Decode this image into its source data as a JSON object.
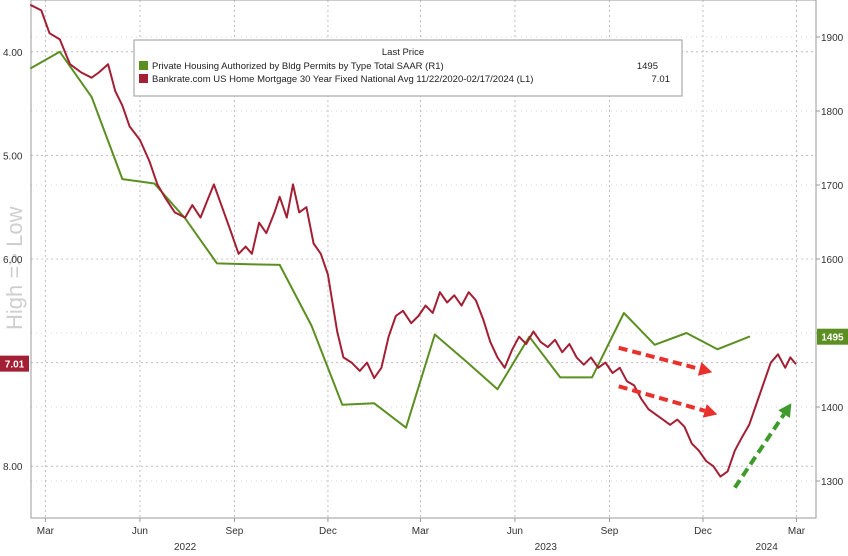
{
  "chart_data": {
    "type": "line",
    "legend": {
      "header": "Last Price",
      "placement": "top",
      "entries": [
        {
          "label": "Private Housing Authorized by Bldg Permits by Type Total SAAR  (R1)",
          "value": "1495",
          "color": "#5b8f22"
        },
        {
          "label": "Bankrate.com US Home Mortgage 30 Year Fixed National Avg 11/22/2020-02/17/2024  (L1)",
          "value": "7.01",
          "color": "#a31f34"
        }
      ]
    },
    "side_label": "High => Low",
    "left_axis": {
      "ticks": [
        "4.00",
        "5.00",
        "6.00",
        "7.00",
        "8.00"
      ],
      "values": [
        4,
        5,
        6,
        7,
        8
      ],
      "range": [
        3.5,
        8.5
      ],
      "inverted": true
    },
    "right_axis": {
      "ticks": [
        "1900",
        "1800",
        "1700",
        "1600",
        "1500",
        "1400",
        "1300"
      ],
      "values": [
        1900,
        1800,
        1700,
        1600,
        1500,
        1400,
        1300
      ],
      "range": [
        1250,
        1950
      ]
    },
    "x_axis": {
      "months": [
        "Mar",
        "Jun",
        "Sep",
        "Dec",
        "Mar",
        "Jun",
        "Sep",
        "Dec",
        "Mar"
      ],
      "month_dates": [
        "2022-03-01",
        "2022-06-01",
        "2022-09-01",
        "2022-12-01",
        "2023-03-01",
        "2023-06-01",
        "2023-09-01",
        "2023-12-01",
        "2024-03-01"
      ],
      "years": [
        "2022",
        "2023",
        "2024"
      ],
      "year_dates": [
        "2022-07-15",
        "2023-07-01",
        "2024-02-01"
      ],
      "range": [
        "2022-02-15",
        "2024-03-20"
      ]
    },
    "grid": true,
    "badges": [
      {
        "text": "7.01",
        "series": "mortgage",
        "value": 7.01,
        "color": "#a31f34"
      },
      {
        "text": "1495",
        "series": "permits",
        "value": 1495,
        "color": "#5b8f22"
      }
    ],
    "annotations": [
      {
        "type": "arrow",
        "color": "#e8302c",
        "dashed": true,
        "from": [
          "2023-09-10",
          1480
        ],
        "to": [
          "2023-12-10",
          1447
        ]
      },
      {
        "type": "arrow",
        "color": "#e8302c",
        "dashed": true,
        "from": [
          "2023-09-10",
          1428
        ],
        "to": [
          "2023-12-15",
          1390
        ]
      },
      {
        "type": "arrow",
        "color": "#3e9a2a",
        "dashed": true,
        "from": [
          "2024-01-01",
          1291
        ],
        "to": [
          "2024-02-25",
          1405
        ]
      }
    ],
    "series": [
      {
        "id": "permits",
        "axis": "right",
        "color": "#5b8f22",
        "points": [
          [
            "2022-02-15",
            1858
          ],
          [
            "2022-03-15",
            1880
          ],
          [
            "2022-04-15",
            1819
          ],
          [
            "2022-05-15",
            1708
          ],
          [
            "2022-06-15",
            1702
          ],
          [
            "2022-07-15",
            1655
          ],
          [
            "2022-08-15",
            1594
          ],
          [
            "2022-09-15",
            1593
          ],
          [
            "2022-10-15",
            1592
          ],
          [
            "2022-11-15",
            1510
          ],
          [
            "2022-12-15",
            1403
          ],
          [
            "2023-01-15",
            1405
          ],
          [
            "2023-02-15",
            1372
          ],
          [
            "2023-03-15",
            1498
          ],
          [
            "2023-04-15",
            1461
          ],
          [
            "2023-05-15",
            1424
          ],
          [
            "2023-06-15",
            1495
          ],
          [
            "2023-07-15",
            1440
          ],
          [
            "2023-08-15",
            1440
          ],
          [
            "2023-09-15",
            1527
          ],
          [
            "2023-10-15",
            1484
          ],
          [
            "2023-11-15",
            1500
          ],
          [
            "2023-12-15",
            1478
          ],
          [
            "2024-01-15",
            1495
          ]
        ]
      },
      {
        "id": "mortgage",
        "axis": "left",
        "color": "#a31f34",
        "points": [
          [
            "2022-02-15",
            3.55
          ],
          [
            "2022-02-25",
            3.6
          ],
          [
            "2022-03-05",
            3.82
          ],
          [
            "2022-03-15",
            3.88
          ],
          [
            "2022-03-25",
            4.12
          ],
          [
            "2022-04-05",
            4.2
          ],
          [
            "2022-04-15",
            4.25
          ],
          [
            "2022-04-22",
            4.2
          ],
          [
            "2022-05-01",
            4.12
          ],
          [
            "2022-05-08",
            4.38
          ],
          [
            "2022-05-15",
            4.52
          ],
          [
            "2022-05-22",
            4.72
          ],
          [
            "2022-06-01",
            4.85
          ],
          [
            "2022-06-10",
            5.05
          ],
          [
            "2022-06-18",
            5.28
          ],
          [
            "2022-06-25",
            5.4
          ],
          [
            "2022-07-05",
            5.55
          ],
          [
            "2022-07-15",
            5.6
          ],
          [
            "2022-07-22",
            5.48
          ],
          [
            "2022-07-30",
            5.6
          ],
          [
            "2022-08-05",
            5.45
          ],
          [
            "2022-08-12",
            5.28
          ],
          [
            "2022-08-20",
            5.5
          ],
          [
            "2022-08-28",
            5.72
          ],
          [
            "2022-09-05",
            5.95
          ],
          [
            "2022-09-12",
            5.88
          ],
          [
            "2022-09-18",
            5.95
          ],
          [
            "2022-09-25",
            5.65
          ],
          [
            "2022-10-02",
            5.75
          ],
          [
            "2022-10-10",
            5.55
          ],
          [
            "2022-10-15",
            5.4
          ],
          [
            "2022-10-22",
            5.6
          ],
          [
            "2022-10-28",
            5.28
          ],
          [
            "2022-11-03",
            5.55
          ],
          [
            "2022-11-10",
            5.5
          ],
          [
            "2022-11-17",
            5.85
          ],
          [
            "2022-11-24",
            5.95
          ],
          [
            "2022-12-01",
            6.15
          ],
          [
            "2022-12-05",
            6.4
          ],
          [
            "2022-12-10",
            6.7
          ],
          [
            "2022-12-16",
            6.95
          ],
          [
            "2022-12-24",
            7.0
          ],
          [
            "2023-01-01",
            7.08
          ],
          [
            "2023-01-08",
            7.0
          ],
          [
            "2023-01-15",
            7.15
          ],
          [
            "2023-01-22",
            7.05
          ],
          [
            "2023-01-29",
            6.75
          ],
          [
            "2023-02-05",
            6.55
          ],
          [
            "2023-02-12",
            6.5
          ],
          [
            "2023-02-20",
            6.62
          ],
          [
            "2023-02-27",
            6.55
          ],
          [
            "2023-03-06",
            6.45
          ],
          [
            "2023-03-13",
            6.52
          ],
          [
            "2023-03-20",
            6.32
          ],
          [
            "2023-03-27",
            6.42
          ],
          [
            "2023-04-03",
            6.35
          ],
          [
            "2023-04-10",
            6.45
          ],
          [
            "2023-04-17",
            6.32
          ],
          [
            "2023-04-24",
            6.4
          ],
          [
            "2023-05-01",
            6.58
          ],
          [
            "2023-05-08",
            6.8
          ],
          [
            "2023-05-15",
            6.95
          ],
          [
            "2023-05-22",
            7.05
          ],
          [
            "2023-05-29",
            6.88
          ],
          [
            "2023-06-05",
            6.75
          ],
          [
            "2023-06-12",
            6.82
          ],
          [
            "2023-06-19",
            6.7
          ],
          [
            "2023-06-26",
            6.8
          ],
          [
            "2023-07-03",
            6.85
          ],
          [
            "2023-07-10",
            6.78
          ],
          [
            "2023-07-17",
            6.9
          ],
          [
            "2023-07-24",
            6.82
          ],
          [
            "2023-07-31",
            6.95
          ],
          [
            "2023-08-07",
            7.02
          ],
          [
            "2023-08-14",
            6.95
          ],
          [
            "2023-08-21",
            7.05
          ],
          [
            "2023-08-28",
            7.0
          ],
          [
            "2023-09-04",
            7.1
          ],
          [
            "2023-09-11",
            7.05
          ],
          [
            "2023-09-18",
            7.18
          ],
          [
            "2023-09-25",
            7.22
          ],
          [
            "2023-10-02",
            7.35
          ],
          [
            "2023-10-09",
            7.45
          ],
          [
            "2023-10-16",
            7.5
          ],
          [
            "2023-10-23",
            7.55
          ],
          [
            "2023-10-30",
            7.6
          ],
          [
            "2023-11-06",
            7.55
          ],
          [
            "2023-11-13",
            7.62
          ],
          [
            "2023-11-20",
            7.78
          ],
          [
            "2023-11-27",
            7.85
          ],
          [
            "2023-12-04",
            7.95
          ],
          [
            "2023-12-11",
            8.0
          ],
          [
            "2023-12-18",
            8.1
          ],
          [
            "2023-12-25",
            8.05
          ],
          [
            "2024-01-01",
            7.85
          ],
          [
            "2024-01-08",
            7.72
          ],
          [
            "2024-01-15",
            7.6
          ],
          [
            "2024-01-22",
            7.4
          ],
          [
            "2024-01-29",
            7.2
          ],
          [
            "2024-02-05",
            7.0
          ],
          [
            "2024-02-12",
            6.92
          ],
          [
            "2024-02-19",
            7.05
          ],
          [
            "2024-02-24",
            6.95
          ],
          [
            "2024-02-29",
            7.01
          ]
        ]
      }
    ]
  }
}
